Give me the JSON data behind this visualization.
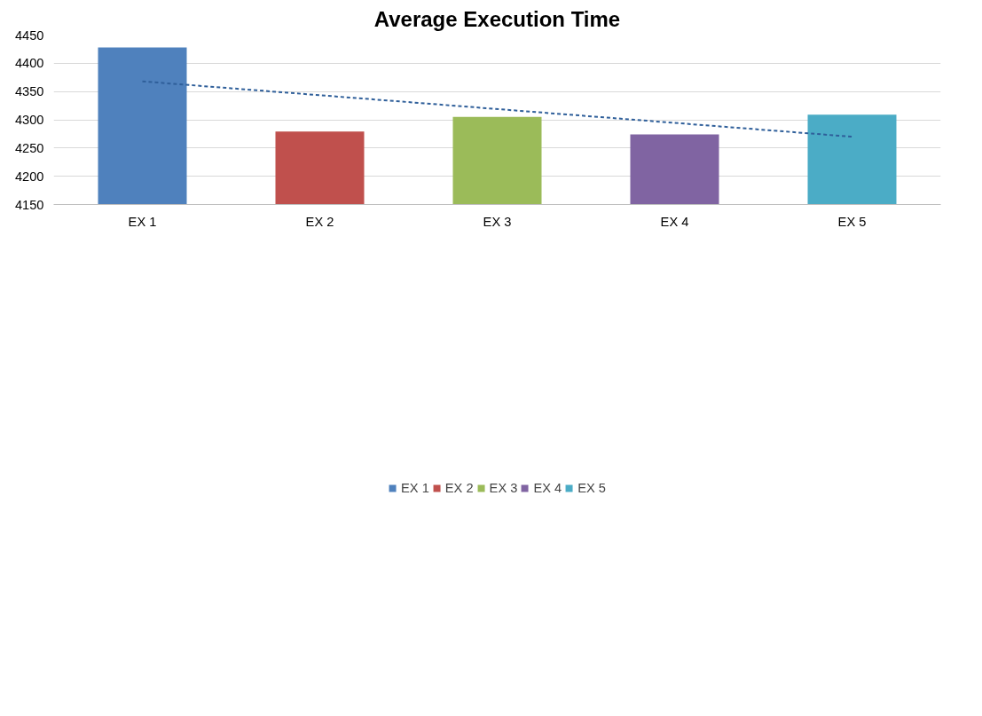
{
  "chart_data": {
    "type": "bar",
    "title": "Average Execution Time",
    "categories": [
      "EX 1",
      "EX 2",
      "EX 3",
      "EX 4",
      "EX 5"
    ],
    "series": [
      {
        "name": "EX 1",
        "color": "#4f81bd",
        "values": [
          4428,
          null,
          null,
          null,
          null
        ]
      },
      {
        "name": "EX 2",
        "color": "#c0504d",
        "values": [
          null,
          4279,
          null,
          null,
          null
        ]
      },
      {
        "name": "EX 3",
        "color": "#9bbb59",
        "values": [
          null,
          null,
          4305,
          null,
          null
        ]
      },
      {
        "name": "EX 4",
        "color": "#8064a2",
        "values": [
          null,
          null,
          null,
          4274,
          null
        ]
      },
      {
        "name": "EX 5",
        "color": "#4bacc6",
        "values": [
          null,
          null,
          null,
          null,
          4309
        ]
      },
      {
        "type": "line",
        "x": [
          "EX 1",
          "EX 5"
        ],
        "values": [
          4368,
          4270
        ],
        "color": "#2f5f9a",
        "line_style": "dashed"
      }
    ],
    "ylim": [
      4150,
      4450
    ],
    "yticks": [
      4150,
      4200,
      4250,
      4300,
      4350,
      4400,
      4450
    ],
    "grid": "y",
    "legend": "bottom"
  }
}
